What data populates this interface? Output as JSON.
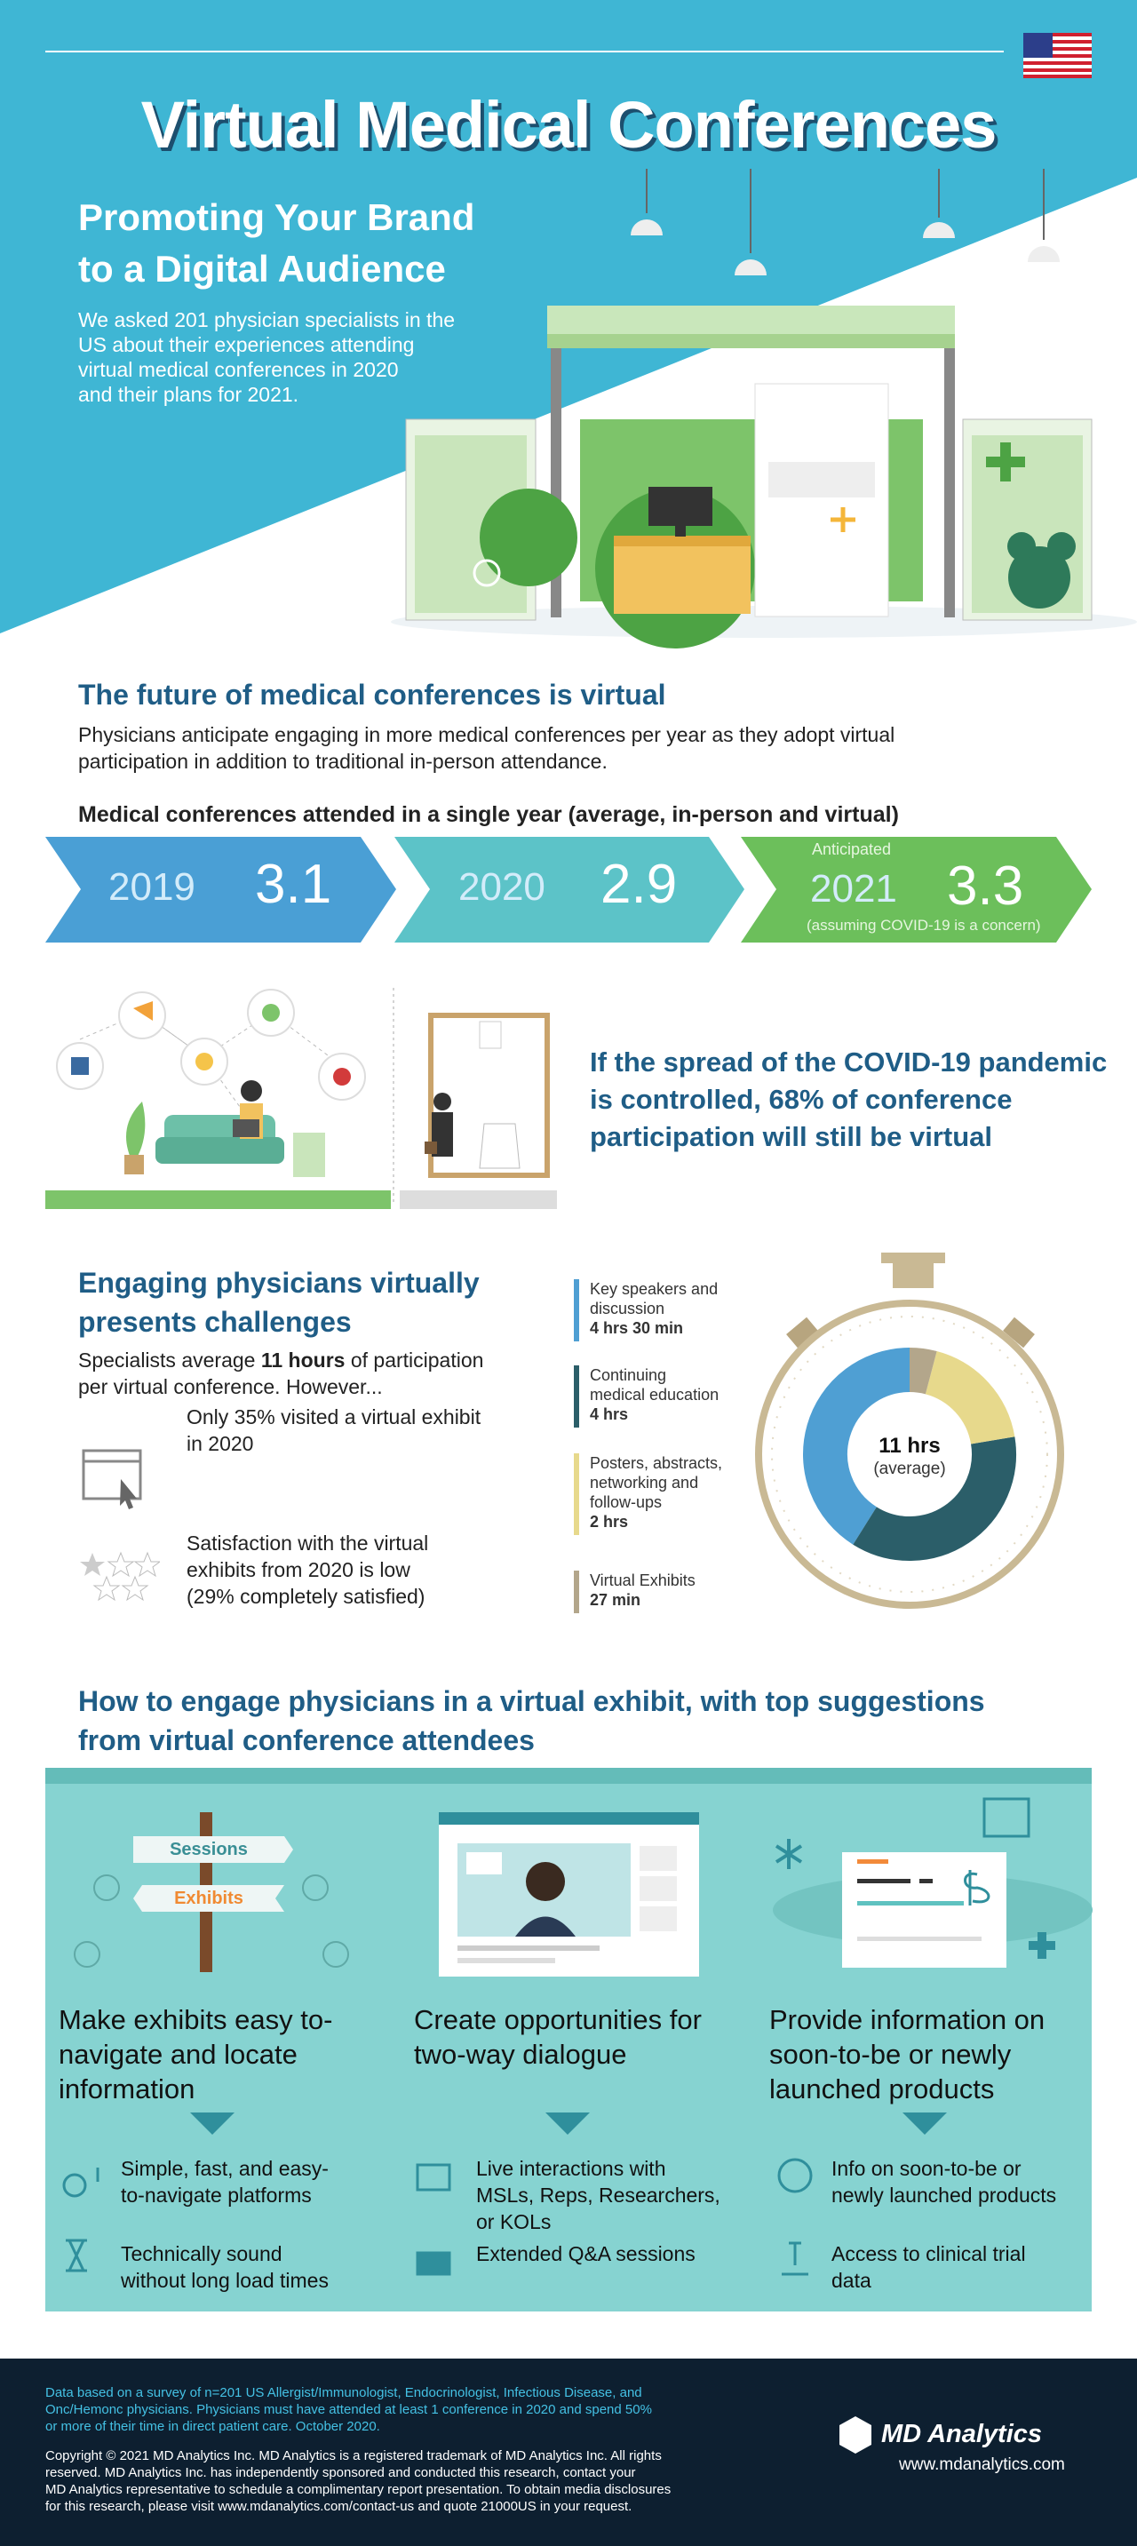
{
  "header": {
    "title": "Virtual Medical Conferences",
    "subtitle_lines": [
      "Promoting Your Brand",
      "to a Digital Audience"
    ],
    "intro_lines": [
      "We asked 201 physician specialists in the",
      "US about their experiences attending",
      "virtual medical conferences in 2020",
      "and their plans for 2021."
    ]
  },
  "future": {
    "heading": "The future of medical conferences is virtual",
    "text_lines": [
      "Physicians anticipate engaging in more medical conferences per year as they adopt virtual",
      "participation in addition to traditional in-person attendance."
    ],
    "chart_label": "Medical conferences attended in a single year (average, in-person and virtual)",
    "years": [
      {
        "label": "2019",
        "value": 3.1
      },
      {
        "label": "2020",
        "value": 2.9
      },
      {
        "label": "2021",
        "value": 3.3,
        "note_top": "Anticipated",
        "note": "(assuming COVID-19 is a concern)"
      }
    ],
    "covid_lines": [
      "If the spread of the COVID-19 pandemic",
      "is controlled, 68% of conference",
      "participation will still be virtual"
    ]
  },
  "challenges": {
    "heading_lines": [
      "Engaging physicians virtually",
      "presents challenges"
    ],
    "text_start": "Specialists average ",
    "text_bold": "11 hours",
    "text_end": " of participation",
    "text_line2": "per virtual conference. However...",
    "facts": [
      {
        "lines": [
          "Only 35% visited a virtual exhibit",
          "in 2020"
        ]
      },
      {
        "lines": [
          "Satisfaction with the virtual",
          "exhibits from 2020 is low",
          "(29% completely satisfied)"
        ]
      }
    ],
    "breakdown": [
      {
        "label_lines": [
          "Key speakers and",
          "discussion"
        ],
        "duration": "4 hrs 30 min",
        "minutes": 270,
        "color": "#4f9fd3"
      },
      {
        "label_lines": [
          "Continuing",
          "medical education"
        ],
        "duration": "4 hrs",
        "minutes": 240,
        "color": "#2b5e69"
      },
      {
        "label_lines": [
          "Posters, abstracts,",
          "networking and",
          "follow-ups"
        ],
        "duration": "2 hrs",
        "minutes": 120,
        "color": "#e7d98c"
      },
      {
        "label_lines": [
          "Virtual Exhibits"
        ],
        "duration": "27 min",
        "minutes": 27,
        "color": "#b3a68b"
      }
    ],
    "center_value": "11 hrs",
    "center_label": "(average)"
  },
  "suggestions": {
    "heading_lines": [
      "How to engage physicians in a virtual exhibit, with top suggestions",
      "from virtual conference attendees"
    ],
    "signs": [
      "Sessions",
      "Exhibits"
    ],
    "columns": [
      {
        "title_lines": [
          "Make exhibits easy to-",
          "navigate and locate",
          "information"
        ],
        "items": [
          {
            "lines": [
              "Simple, fast, and easy-",
              "to-navigate platforms"
            ]
          },
          {
            "lines": [
              "Technically sound",
              "without long load times"
            ]
          }
        ]
      },
      {
        "title_lines": [
          "Create opportunities for",
          "two-way dialogue"
        ],
        "items": [
          {
            "lines": [
              "Live interactions with",
              "MSLs, Reps, Researchers,",
              "or KOLs"
            ]
          },
          {
            "lines": [
              "Extended Q&A sessions"
            ]
          }
        ]
      },
      {
        "title_lines": [
          "Provide information on",
          "soon-to-be or newly",
          "launched products"
        ],
        "items": [
          {
            "lines": [
              "Info on soon-to-be or",
              "newly launched products"
            ]
          },
          {
            "lines": [
              "Access to clinical trial",
              "data"
            ]
          }
        ]
      }
    ]
  },
  "footer": {
    "survey_lines": [
      "Data based on a survey of n=201 US Allergist/Immunologist, Endocrinologist, Infectious Disease, and",
      "Onc/Hemonc physicians. Physicians must have attended at least 1 conference in 2020 and spend 50%",
      "or more of their time in direct patient care. October 2020."
    ],
    "copyright_lines": [
      "Copyright © 2021 MD Analytics Inc. MD Analytics is a registered trademark of MD Analytics Inc. All rights",
      "reserved. MD Analytics Inc. has independently sponsored and conducted this research, contact your",
      "MD Analytics representative to schedule a complimentary report presentation. To obtain media disclosures",
      "for this research, please visit www.mdanalytics.com/contact-us and quote 21000US in your request."
    ],
    "logo": "MD Analytics",
    "url": "www.mdanalytics.com"
  }
}
